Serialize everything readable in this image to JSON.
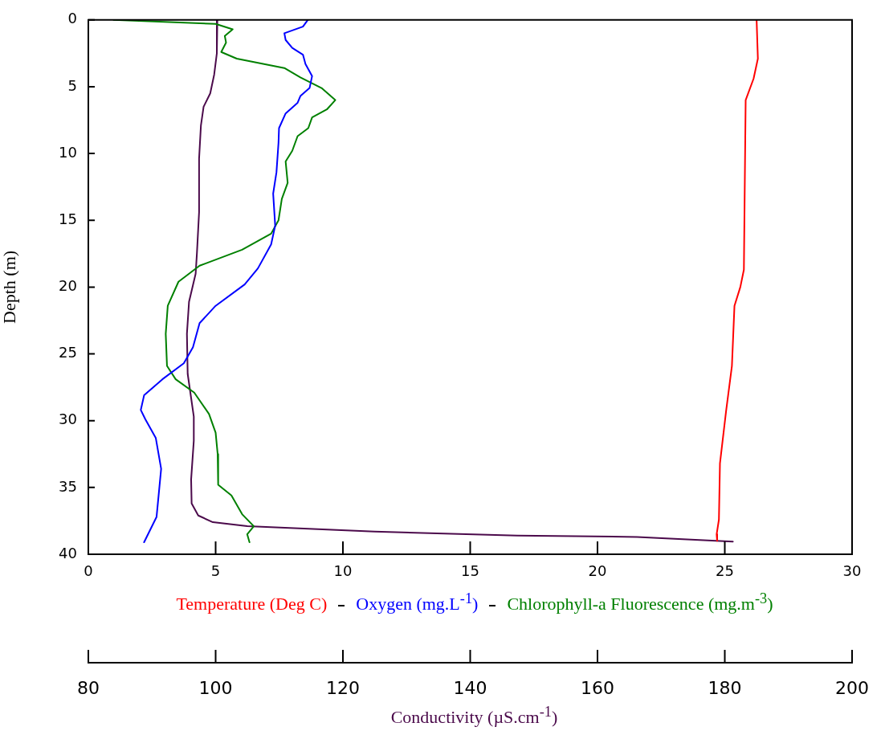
{
  "chart_data": {
    "type": "line",
    "ylabel": "Depth (m)",
    "x2label": "Conductivity (µS.cm$^{-1}$)",
    "legend": "bottom",
    "marker": "none",
    "line_style": "solid",
    "xlim": [
      0,
      30
    ],
    "xticks": [
      0,
      5,
      10,
      15,
      20,
      25,
      30
    ],
    "x2lim": [
      80,
      200
    ],
    "x2ticks": [
      80,
      100,
      120,
      140,
      160,
      180,
      200
    ],
    "ylim": [
      40,
      0
    ],
    "yticks": [
      0,
      5,
      10,
      15,
      20,
      25,
      30,
      35,
      40
    ],
    "series": [
      {
        "name": "Temperature (Deg C)",
        "color": "#ff0000",
        "x": [
          26.25,
          26.3,
          26.13,
          25.82,
          25.75,
          25.61,
          25.38,
          25.28,
          25.05,
          24.81,
          24.77,
          24.68,
          24.7
        ],
        "values": [
          0,
          2.9,
          4.4,
          6.0,
          18.7,
          20.0,
          21.4,
          25.9,
          29.3,
          33.2,
          37.4,
          38.5,
          39.0
        ]
      },
      {
        "name": "Oxygen (mg.L$^{-1}$)",
        "color": "#0000ff",
        "x": [
          8.62,
          8.43,
          7.7,
          7.75,
          8.01,
          8.43,
          8.53,
          8.79,
          8.69,
          8.33,
          8.22,
          7.75,
          7.49,
          7.47,
          7.39,
          7.26,
          7.34,
          7.18,
          6.66,
          6.14,
          5.0,
          4.37,
          4.11,
          3.75,
          2.91,
          2.19,
          2.06,
          2.24,
          2.65,
          2.86,
          2.76,
          2.68,
          2.19
        ],
        "values": [
          0,
          0.5,
          1.0,
          1.5,
          2.1,
          2.6,
          3.3,
          4.2,
          5.1,
          5.7,
          6.2,
          7.0,
          8.1,
          9.2,
          11.4,
          13.0,
          15.4,
          16.8,
          18.6,
          19.8,
          21.4,
          22.7,
          24.5,
          25.7,
          26.9,
          28.1,
          29.2,
          29.9,
          31.3,
          33.6,
          35.6,
          37.2,
          39.1
        ]
      },
      {
        "name": "Chlorophyll-a Fluorescence (mg.m$^{-3}$)",
        "color": "#008000",
        "x": [
          0.99,
          5.0,
          5.67,
          5.36,
          5.41,
          5.22,
          5.83,
          7.7,
          8.33,
          9.16,
          9.7,
          9.37,
          8.79,
          8.64,
          8.22,
          8.01,
          7.75,
          7.83,
          7.6,
          7.47,
          7.18,
          6.04,
          4.37,
          3.54,
          3.12,
          3.04,
          3.09,
          3.43,
          4.16,
          4.74,
          5.0,
          5.08,
          5.1,
          5.62,
          6.04,
          6.5,
          6.24,
          6.33
        ],
        "values": [
          0,
          0.3,
          0.7,
          1.2,
          1.7,
          2.4,
          2.9,
          3.6,
          4.3,
          5.1,
          6.0,
          6.7,
          7.3,
          8.1,
          8.7,
          9.8,
          10.6,
          12.2,
          13.4,
          15.0,
          16.0,
          17.2,
          18.4,
          19.6,
          21.4,
          23.5,
          25.9,
          26.9,
          27.9,
          29.5,
          30.9,
          32.5,
          34.8,
          35.6,
          37.0,
          37.9,
          38.5,
          39.1
        ]
      },
      {
        "color": "#4b0a4b",
        "axis": "x2",
        "x": [
          100.27,
          100.19,
          99.77,
          99.15,
          98.11,
          97.69,
          97.4,
          97.4,
          97.07,
          96.86,
          95.82,
          95.49,
          95.61,
          96.57,
          96.57,
          96.15,
          96.23,
          97.27,
          99.56,
          104.97,
          124.96,
          147.4,
          166.2,
          181.27
        ],
        "values": [
          0,
          2.5,
          4.1,
          5.5,
          6.5,
          7.9,
          10.4,
          14.4,
          17.4,
          19.0,
          21.1,
          23.5,
          26.5,
          29.7,
          31.5,
          34.4,
          36.2,
          37.1,
          37.6,
          37.9,
          38.3,
          38.6,
          38.7,
          39.05
        ]
      }
    ]
  }
}
